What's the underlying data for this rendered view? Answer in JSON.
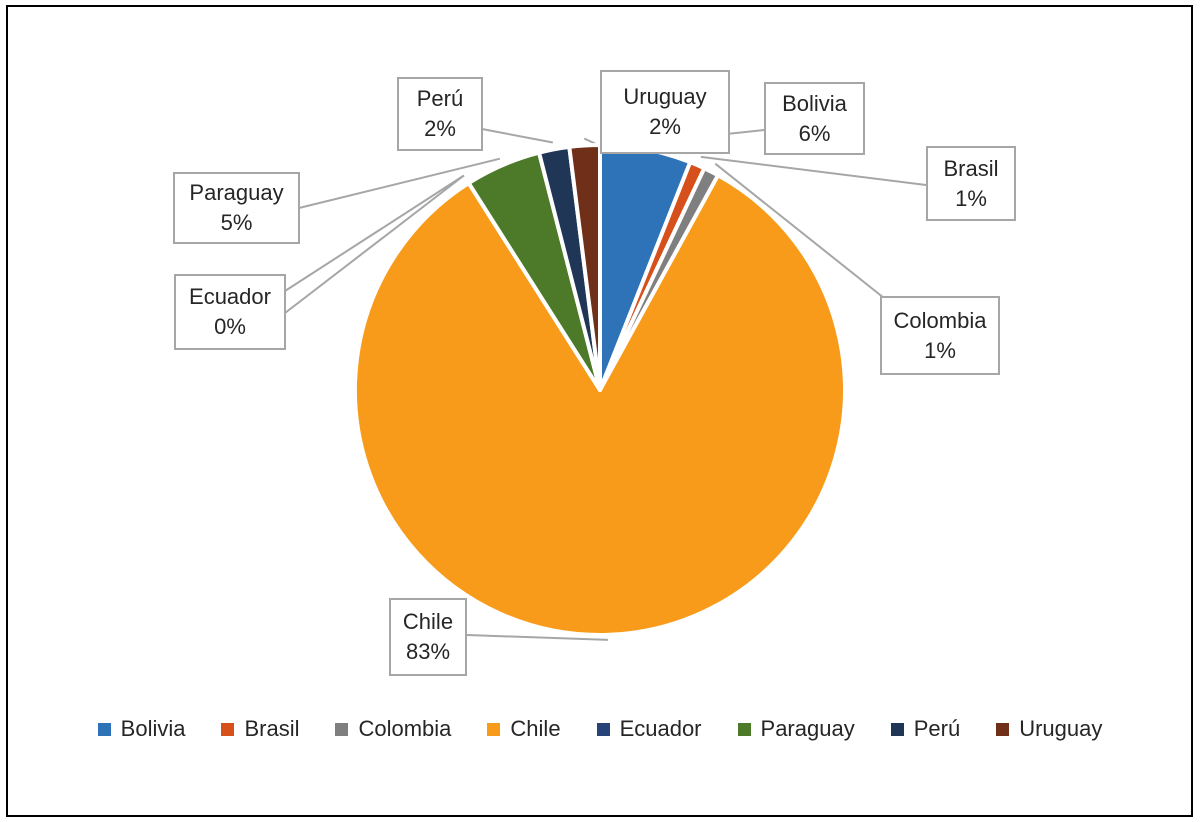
{
  "chart_data": {
    "type": "pie",
    "title": "",
    "categories": [
      "Bolivia",
      "Brasil",
      "Colombia",
      "Chile",
      "Ecuador",
      "Paraguay",
      "Perú",
      "Uruguay"
    ],
    "values": [
      6,
      1,
      1,
      83,
      0,
      5,
      2,
      2
    ],
    "percent_labels": [
      "6%",
      "1%",
      "1%",
      "83%",
      "0%",
      "5%",
      "2%",
      "2%"
    ],
    "unit": "%",
    "colors": [
      "#2E73B8",
      "#D5501A",
      "#7F7F7F",
      "#F89B1B",
      "#264478",
      "#4C7A28",
      "#1F3656",
      "#6F2F18"
    ],
    "legend_position": "bottom",
    "label_style": "callout-boxes-with-leader-lines",
    "start_angle_deg": 0,
    "direction": "clockwise",
    "callout_border_color": "#A6A6A6",
    "leader_line_color": "#A6A6A6",
    "slice_separator_color": "#FFFFFF"
  }
}
